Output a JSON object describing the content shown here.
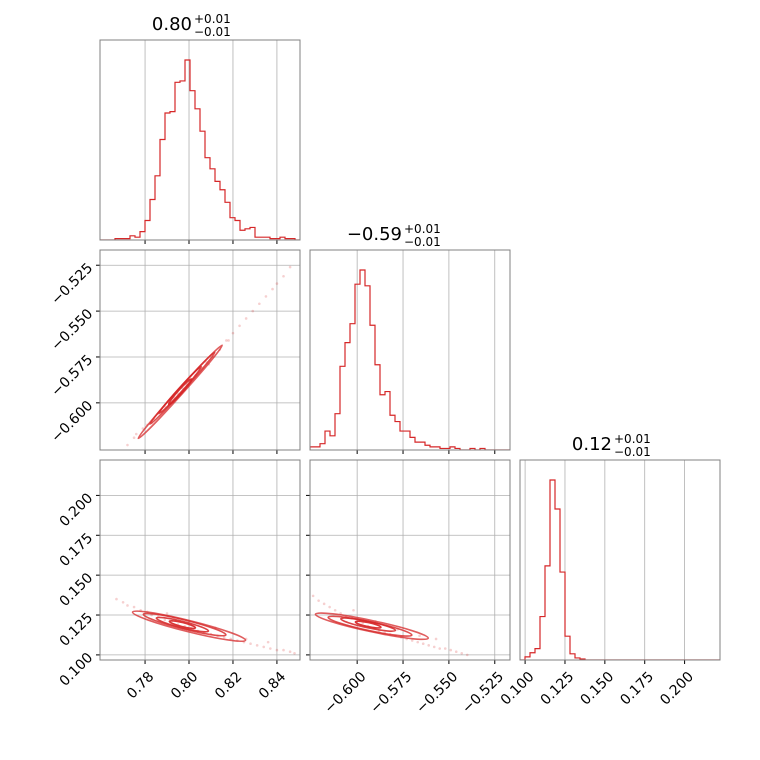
{
  "chart_data": {
    "type": "corner",
    "color": "#d62728",
    "grid": true,
    "titles": [
      {
        "value": "0.80",
        "upper": "+0.01",
        "lower": "−0.01"
      },
      {
        "value": "−0.59",
        "upper": "+0.01",
        "lower": "−0.01"
      },
      {
        "value": "0.12",
        "upper": "+0.01",
        "lower": "−0.01"
      }
    ],
    "parameters": [
      {
        "range": [
          0.7595,
          0.8505
        ],
        "ticks": [
          0.78,
          0.8,
          0.82,
          0.84
        ],
        "tick_labels": [
          "0.78",
          "0.80",
          "0.82",
          "0.84"
        ]
      },
      {
        "range": [
          -0.6257,
          -0.5167
        ],
        "ticks": [
          -0.6,
          -0.575,
          -0.55,
          -0.525
        ],
        "tick_labels": [
          "−0.600",
          "−0.575",
          "−0.550",
          "−0.525"
        ]
      },
      {
        "range": [
          0.0968,
          0.2222
        ],
        "ticks": [
          0.1,
          0.125,
          0.15,
          0.175,
          0.2
        ],
        "tick_labels": [
          "0.100",
          "0.125",
          "0.150",
          "0.175",
          "0.200"
        ]
      }
    ],
    "histograms": [
      {
        "param": 0,
        "bins": [
          0.7595,
          0.8505
        ],
        "counts": [
          0,
          0,
          0,
          1,
          1,
          1,
          3,
          2,
          6,
          14,
          29,
          46,
          72,
          91,
          92,
          113,
          114,
          129,
          107,
          94,
          78,
          59,
          51,
          42,
          36,
          27,
          16,
          14,
          7,
          8,
          9,
          2,
          2,
          2,
          1,
          1,
          2,
          1,
          1,
          0
        ]
      },
      {
        "param": 1,
        "bins": [
          -0.6257,
          -0.5167
        ],
        "counts": [
          2,
          2,
          4,
          12,
          9,
          23,
          53,
          68,
          80,
          105,
          114,
          104,
          79,
          54,
          35,
          37,
          22,
          18,
          12,
          12,
          8,
          5,
          5,
          3,
          2,
          2,
          1,
          1,
          2,
          1,
          0,
          0,
          1,
          0,
          1,
          0,
          0,
          0,
          0,
          0
        ]
      },
      {
        "param": 2,
        "bins": [
          0.0968,
          0.2222
        ],
        "counts": [
          0,
          3,
          7,
          11,
          42,
          91,
          174,
          146,
          85,
          23,
          6,
          2,
          1,
          0,
          0,
          0,
          0,
          0,
          0,
          0,
          0,
          0,
          0,
          0,
          0,
          0,
          0,
          0,
          0,
          0,
          0,
          0,
          0,
          0,
          0,
          0,
          0,
          0,
          0,
          0
        ]
      }
    ],
    "scatter_2d": [
      {
        "x_param": 0,
        "y_param": 1,
        "points": [
          [
            0.772,
            -0.623
          ],
          [
            0.775,
            -0.619
          ],
          [
            0.779,
            -0.614
          ],
          [
            0.781,
            -0.612
          ],
          [
            0.784,
            -0.609
          ],
          [
            0.786,
            -0.606
          ],
          [
            0.789,
            -0.602
          ],
          [
            0.791,
            -0.6
          ],
          [
            0.793,
            -0.597
          ],
          [
            0.795,
            -0.595
          ],
          [
            0.797,
            -0.592
          ],
          [
            0.799,
            -0.59
          ],
          [
            0.801,
            -0.587
          ],
          [
            0.803,
            -0.585
          ],
          [
            0.806,
            -0.581
          ],
          [
            0.808,
            -0.578
          ],
          [
            0.811,
            -0.575
          ],
          [
            0.814,
            -0.571
          ],
          [
            0.817,
            -0.566
          ],
          [
            0.82,
            -0.562
          ],
          [
            0.823,
            -0.558
          ],
          [
            0.826,
            -0.554
          ],
          [
            0.829,
            -0.55
          ],
          [
            0.832,
            -0.546
          ],
          [
            0.835,
            -0.542
          ],
          [
            0.838,
            -0.538
          ],
          [
            0.84,
            -0.535
          ],
          [
            0.843,
            -0.531
          ],
          [
            0.846,
            -0.526
          ],
          [
            0.776,
            -0.617
          ],
          [
            0.783,
            -0.611
          ],
          [
            0.798,
            -0.593
          ],
          [
            0.809,
            -0.579
          ],
          [
            0.818,
            -0.566
          ]
        ],
        "contours": [
          {
            "center": [
              0.796,
              -0.594
            ],
            "half_axes": [
              0.022,
              0.0015
            ],
            "angle_deg": 48
          },
          {
            "center": [
              0.797,
              -0.592
            ],
            "half_axes": [
              0.017,
              0.0012
            ],
            "angle_deg": 48
          },
          {
            "center": [
              0.796,
              -0.593
            ],
            "half_axes": [
              0.011,
              0.0009
            ],
            "angle_deg": 48
          },
          {
            "center": [
              0.796,
              -0.594
            ],
            "half_axes": [
              0.006,
              0.0006
            ],
            "angle_deg": 48
          }
        ]
      },
      {
        "x_param": 0,
        "y_param": 2,
        "points": [
          [
            0.767,
            0.135
          ],
          [
            0.77,
            0.133
          ],
          [
            0.772,
            0.131
          ],
          [
            0.775,
            0.13
          ],
          [
            0.778,
            0.128
          ],
          [
            0.781,
            0.127
          ],
          [
            0.783,
            0.125
          ],
          [
            0.786,
            0.124
          ],
          [
            0.789,
            0.122
          ],
          [
            0.792,
            0.121
          ],
          [
            0.795,
            0.119
          ],
          [
            0.798,
            0.118
          ],
          [
            0.801,
            0.117
          ],
          [
            0.804,
            0.115
          ],
          [
            0.807,
            0.114
          ],
          [
            0.81,
            0.113
          ],
          [
            0.813,
            0.112
          ],
          [
            0.816,
            0.111
          ],
          [
            0.819,
            0.11
          ],
          [
            0.822,
            0.109
          ],
          [
            0.825,
            0.108
          ],
          [
            0.828,
            0.107
          ],
          [
            0.831,
            0.106
          ],
          [
            0.834,
            0.105
          ],
          [
            0.837,
            0.104
          ],
          [
            0.84,
            0.103
          ],
          [
            0.843,
            0.103
          ],
          [
            0.846,
            0.102
          ],
          [
            0.848,
            0.101
          ],
          [
            0.79,
            0.126
          ],
          [
            0.8,
            0.121
          ],
          [
            0.812,
            0.117
          ],
          [
            0.826,
            0.11
          ],
          [
            0.836,
            0.108
          ]
        ],
        "contours": [
          {
            "center": [
              0.8,
              0.118
            ],
            "half_axes": [
              0.026,
              0.0035
            ],
            "angle_deg": -14
          },
          {
            "center": [
              0.798,
              0.119
            ],
            "half_axes": [
              0.019,
              0.0028
            ],
            "angle_deg": -14
          },
          {
            "center": [
              0.797,
              0.119
            ],
            "half_axes": [
              0.012,
              0.002
            ],
            "angle_deg": -14
          },
          {
            "center": [
              0.797,
              0.119
            ],
            "half_axes": [
              0.006,
              0.0012
            ],
            "angle_deg": -14
          }
        ]
      },
      {
        "x_param": 1,
        "y_param": 2,
        "points": [
          [
            -0.624,
            0.137
          ],
          [
            -0.621,
            0.134
          ],
          [
            -0.618,
            0.132
          ],
          [
            -0.615,
            0.13
          ],
          [
            -0.612,
            0.128
          ],
          [
            -0.609,
            0.126
          ],
          [
            -0.606,
            0.124
          ],
          [
            -0.603,
            0.123
          ],
          [
            -0.6,
            0.121
          ],
          [
            -0.597,
            0.12
          ],
          [
            -0.594,
            0.118
          ],
          [
            -0.591,
            0.117
          ],
          [
            -0.588,
            0.115
          ],
          [
            -0.585,
            0.114
          ],
          [
            -0.582,
            0.113
          ],
          [
            -0.579,
            0.112
          ],
          [
            -0.576,
            0.111
          ],
          [
            -0.573,
            0.11
          ],
          [
            -0.57,
            0.109
          ],
          [
            -0.567,
            0.108
          ],
          [
            -0.564,
            0.107
          ],
          [
            -0.561,
            0.106
          ],
          [
            -0.558,
            0.105
          ],
          [
            -0.555,
            0.104
          ],
          [
            -0.552,
            0.104
          ],
          [
            -0.549,
            0.103
          ],
          [
            -0.546,
            0.102
          ],
          [
            -0.543,
            0.101
          ],
          [
            -0.54,
            0.1
          ],
          [
            -0.602,
            0.128
          ],
          [
            -0.59,
            0.121
          ],
          [
            -0.578,
            0.116
          ],
          [
            -0.566,
            0.112
          ],
          [
            -0.557,
            0.11
          ]
        ],
        "contours": [
          {
            "center": [
              -0.592,
              0.118
            ],
            "half_axes": [
              0.031,
              0.0035
            ],
            "angle_deg": -12
          },
          {
            "center": [
              -0.593,
              0.118
            ],
            "half_axes": [
              0.023,
              0.0028
            ],
            "angle_deg": -12
          },
          {
            "center": [
              -0.594,
              0.119
            ],
            "half_axes": [
              0.015,
              0.002
            ],
            "angle_deg": -12
          },
          {
            "center": [
              -0.594,
              0.119
            ],
            "half_axes": [
              0.007,
              0.0012
            ],
            "angle_deg": -12
          }
        ]
      }
    ]
  }
}
